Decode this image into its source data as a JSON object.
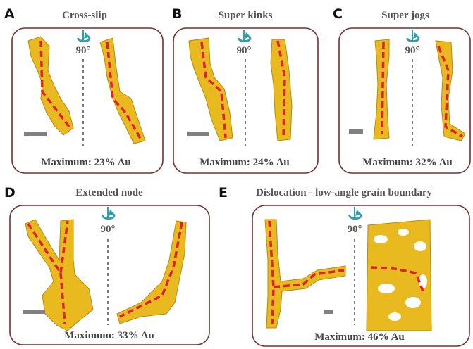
{
  "panels": [
    {
      "letter": "A",
      "title": "Cross-slip",
      "rotation": "90°",
      "caption": "Maximum: 23% Au"
    },
    {
      "letter": "B",
      "title": "Super kinks",
      "rotation": "90°",
      "caption": "Maximum: 24% Au"
    },
    {
      "letter": "C",
      "title": "Super jogs",
      "rotation": "90°",
      "caption": "Maximum: 32% Au"
    },
    {
      "letter": "D",
      "title": "Extended node",
      "rotation": "90°",
      "caption": "Maximum: 33% Au"
    },
    {
      "letter": "E",
      "title": "Dislocation - low-angle grain boundary",
      "rotation": "90°",
      "caption": "Maximum: 46% Au"
    }
  ]
}
